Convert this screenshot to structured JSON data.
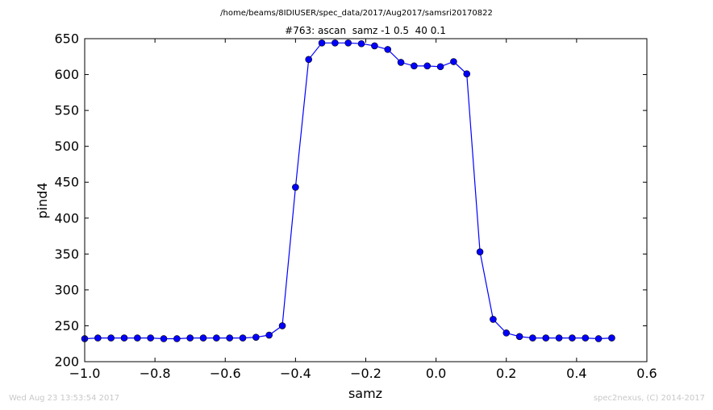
{
  "header": {
    "file_path": "/home/beams/8IDIUSER/spec_data/2017/Aug2017/samsri20170822"
  },
  "footer": {
    "timestamp": "Wed Aug 23 13:53:54 2017",
    "credit": "spec2nexus, (C) 2014-2017"
  },
  "colors": {
    "series": "#0000ff",
    "axes": "#000000"
  },
  "chart_data": {
    "type": "line",
    "markers": "circle",
    "title": "#763: ascan  samz -1 0.5  40 0.1",
    "xlabel": "samz",
    "ylabel": "pind4",
    "xlim": [
      -1.0,
      0.6
    ],
    "ylim": [
      200,
      650
    ],
    "xticks": [
      "−1.0",
      "−0.8",
      "−0.6",
      "−0.4",
      "−0.2",
      "0.0",
      "0.2",
      "0.4",
      "0.6"
    ],
    "yticks": [
      "200",
      "250",
      "300",
      "350",
      "400",
      "450",
      "500",
      "550",
      "600",
      "650"
    ],
    "grid": false,
    "legend": "none",
    "x": [
      -1.0,
      -0.9625,
      -0.925,
      -0.8875,
      -0.85,
      -0.8125,
      -0.775,
      -0.7375,
      -0.7,
      -0.6625,
      -0.625,
      -0.5875,
      -0.55,
      -0.5125,
      -0.475,
      -0.4375,
      -0.4,
      -0.3625,
      -0.325,
      -0.2875,
      -0.25,
      -0.2125,
      -0.175,
      -0.1375,
      -0.1,
      -0.0625,
      -0.025,
      0.0125,
      0.05,
      0.0875,
      0.125,
      0.1625,
      0.2,
      0.2375,
      0.275,
      0.3125,
      0.35,
      0.3875,
      0.425,
      0.4625,
      0.5
    ],
    "y": [
      232,
      233,
      233,
      233,
      233,
      233,
      232,
      232,
      233,
      233,
      233,
      233,
      233,
      234,
      237,
      250,
      443,
      621,
      644,
      644,
      644,
      643,
      640,
      635,
      617,
      612,
      612,
      611,
      618,
      601,
      353,
      259,
      240,
      235,
      233,
      233,
      233,
      233,
      233,
      232,
      233
    ]
  }
}
